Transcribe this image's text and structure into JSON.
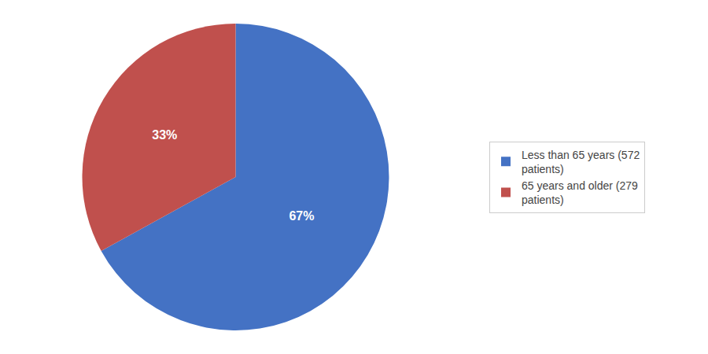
{
  "chart_data": {
    "type": "pie",
    "categories": [
      "Less than 65 years (572\npatients)",
      "65 years and older (279\npatients)"
    ],
    "values": [
      67,
      33
    ],
    "value_labels": [
      "67%",
      "33%"
    ],
    "colors": [
      "#4472C4",
      "#C0504D"
    ],
    "data_labels": true,
    "legend": "right"
  }
}
